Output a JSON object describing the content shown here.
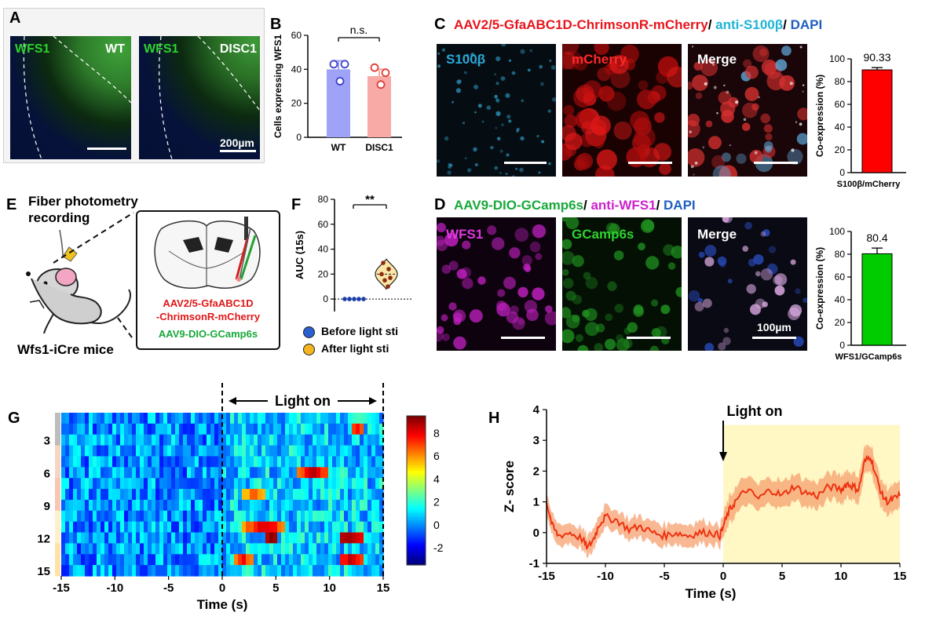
{
  "panels": {
    "A": {
      "letter": "A",
      "left_label": "WFS1",
      "left_group": "WT",
      "right_label": "WFS1",
      "right_group": "DISC1",
      "scalebar": "200µm"
    },
    "B": {
      "letter": "B",
      "sig": "n.s."
    },
    "C": {
      "letter": "C",
      "title_red": "AAV2/5-GfaABC1D-ChrimsonR-mCherry",
      "title_sep1": "/ ",
      "title_cyan": "anti-S100β",
      "title_sep2": "/ ",
      "title_blue": "DAPI",
      "img1": "S100β",
      "img2": "mCherry",
      "img3": "Merge"
    },
    "D": {
      "letter": "D",
      "title_green": "AAV9-DIO-GCamp6s",
      "title_sep1": "/ ",
      "title_magenta": "anti-WFS1",
      "title_sep2": "/ ",
      "title_blue": "DAPI",
      "img1": "WFS1",
      "img2": "GCamp6s",
      "img3": "Merge",
      "scalebar": "100µm"
    },
    "E": {
      "letter": "E",
      "fiber": "Fiber photometry\nrecording",
      "mouse": "Wfs1-iCre mice",
      "virus_red": "AAV2/5-GfaABC1D\n-ChrimsonR-mCherry",
      "virus_green": "AAV9-DIO-GCamp6s"
    },
    "F": {
      "letter": "F",
      "sig": "**",
      "legend1": "Before light sti",
      "legend2": "After light sti"
    },
    "G": {
      "letter": "G",
      "light_on": "Light on"
    },
    "H": {
      "letter": "H",
      "light_on": "Light on"
    }
  },
  "colors": {
    "wt_bar": "#9fa3f5",
    "disc1_bar": "#f7aaa6",
    "c_bar": "#ff0000",
    "d_bar": "#00cc00",
    "title_red": "#e8141c",
    "title_cyan": "#1fb3d6",
    "title_blue": "#1f5fbf",
    "title_green": "#18a83a",
    "title_magenta": "#cc22cc",
    "trace": "#ee3311",
    "band": "#f7a070",
    "light_bg": "#fff7c4"
  },
  "chart_data": [
    {
      "id": "B",
      "type": "bar",
      "categories": [
        "WT",
        "DISC1"
      ],
      "values": [
        40,
        36
      ],
      "errors": [
        5,
        4
      ],
      "points": [
        [
          43,
          33,
          43
        ],
        [
          41,
          31,
          38
        ]
      ],
      "ylabel": "Cells expressing WFS1",
      "ylim": [
        0,
        60
      ],
      "yticks": [
        0,
        20,
        40,
        60
      ],
      "colors": [
        "#9fa3f5",
        "#f7aaa6"
      ]
    },
    {
      "id": "C",
      "type": "bar",
      "categories": [
        "S100β/mCherry"
      ],
      "values": [
        90.33
      ],
      "errors": [
        2
      ],
      "value_labels": [
        "90.33"
      ],
      "ylabel": "Co-expression (%)",
      "ylim": [
        0,
        100
      ],
      "yticks": [
        0,
        20,
        40,
        60,
        80,
        100
      ]
    },
    {
      "id": "D",
      "type": "bar",
      "categories": [
        "WFS1/GCamp6s"
      ],
      "values": [
        80.4
      ],
      "errors": [
        5
      ],
      "value_labels": [
        "80.4"
      ],
      "ylabel": "Co-expression (%)",
      "ylim": [
        0,
        100
      ],
      "yticks": [
        0,
        20,
        40,
        60,
        80,
        100
      ]
    },
    {
      "id": "F",
      "type": "scatter",
      "ylabel": "AUC (15s)",
      "ylim": [
        -10,
        80
      ],
      "yticks": [
        0,
        20,
        40,
        60,
        80
      ],
      "before": [
        0,
        0,
        0,
        0,
        0
      ],
      "after": [
        29,
        24,
        20,
        17,
        15,
        10
      ],
      "violin_range": [
        8,
        32
      ]
    },
    {
      "id": "G",
      "type": "heatmap",
      "xlabel": "Time (s)",
      "xlim": [
        -15,
        15
      ],
      "xticks": [
        -15,
        -10,
        -5,
        0,
        5,
        10,
        15
      ],
      "yticks": [
        3,
        6,
        9,
        12,
        15
      ],
      "rows": 15,
      "colorbar_ticks": [
        -2,
        0,
        2,
        4,
        6,
        8
      ],
      "crange": [
        -3.5,
        9.5
      ],
      "hot": [
        [
          6,
          7,
          10,
          8
        ],
        [
          8,
          2,
          4,
          6
        ],
        [
          11,
          2,
          6,
          8
        ],
        [
          12,
          4,
          5,
          9
        ],
        [
          12,
          11,
          13,
          9
        ],
        [
          14,
          1,
          3,
          7
        ],
        [
          14,
          11,
          13,
          8
        ],
        [
          2,
          12,
          13,
          7
        ]
      ]
    },
    {
      "id": "H",
      "type": "line",
      "xlabel": "Time (s)",
      "ylabel": "Z- score",
      "xlim": [
        -15,
        15
      ],
      "xticks": [
        -15,
        -10,
        -5,
        0,
        5,
        10,
        15
      ],
      "ylim": [
        -1,
        4
      ],
      "yticks": [
        -1,
        0,
        1,
        2,
        3,
        4
      ],
      "x": [
        -15,
        -14.5,
        -14,
        -13,
        -12,
        -11.5,
        -11,
        -10.5,
        -10,
        -9,
        -8,
        -7,
        -6,
        -5,
        -4,
        -3,
        -2,
        -1,
        -0.3,
        0,
        0.5,
        1,
        2,
        3,
        4,
        5,
        6,
        7,
        8,
        9,
        10,
        10.5,
        11,
        11.5,
        12,
        12.5,
        13,
        13.5,
        14,
        14.5,
        15
      ],
      "y": [
        1.0,
        0.2,
        -0.1,
        0.0,
        -0.2,
        -0.5,
        -0.2,
        0.3,
        0.5,
        0.4,
        0.1,
        0.2,
        0.0,
        -0.1,
        0.0,
        -0.1,
        0.0,
        0.0,
        -0.1,
        0.2,
        0.7,
        1.0,
        1.4,
        1.1,
        1.4,
        1.2,
        1.5,
        1.3,
        1.2,
        1.5,
        1.4,
        1.6,
        1.5,
        1.4,
        2.3,
        2.5,
        1.8,
        1.2,
        1.0,
        1.1,
        1.2
      ],
      "err": 0.3,
      "shade_from": 0
    }
  ]
}
